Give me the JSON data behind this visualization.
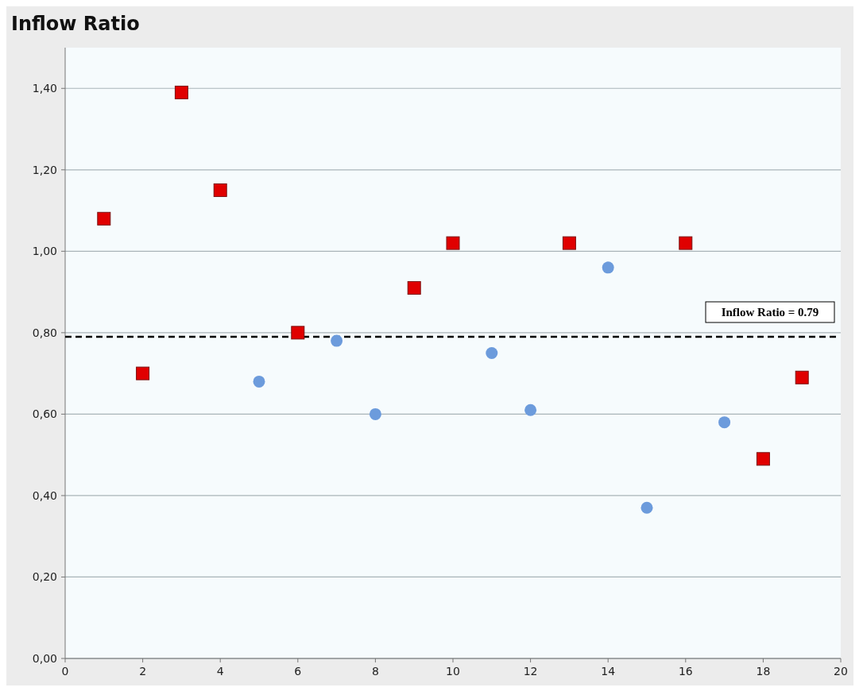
{
  "chart_data": {
    "type": "scatter",
    "title": "Inflow Ratio",
    "xlim": [
      0,
      20
    ],
    "xticks": [
      0,
      2,
      4,
      6,
      8,
      10,
      12,
      14,
      16,
      18,
      20
    ],
    "ylim": [
      0,
      1.5
    ],
    "yticks": [
      {
        "value": 0,
        "label": "0,00"
      },
      {
        "value": 0.2,
        "label": "0,20"
      },
      {
        "value": 0.4,
        "label": "0,40"
      },
      {
        "value": 0.6,
        "label": "0,60"
      },
      {
        "value": 0.8,
        "label": "0,80"
      },
      {
        "value": 1.0,
        "label": "1,00"
      },
      {
        "value": 1.2,
        "label": "1,20"
      },
      {
        "value": 1.4,
        "label": "1,40"
      }
    ],
    "grid": "y",
    "series": [
      {
        "color": "#e00000",
        "marker": "square",
        "x": [
          1,
          2,
          3,
          4,
          6,
          9,
          10,
          13,
          16,
          18,
          19
        ],
        "values": [
          1.08,
          0.7,
          1.39,
          1.15,
          0.8,
          0.91,
          1.02,
          1.02,
          1.02,
          0.49,
          0.69
        ]
      },
      {
        "color": "#6c9bdc",
        "marker": "circle",
        "x": [
          5,
          7,
          8,
          11,
          12,
          14,
          15,
          17
        ],
        "values": [
          0.68,
          0.78,
          0.6,
          0.75,
          0.61,
          0.96,
          0.37,
          0.58
        ]
      }
    ],
    "ref_lines": [
      {
        "axis": "y",
        "value": 0.79,
        "label": "Inflow Ratio = 0.79",
        "line_style": "dashed",
        "color": "#000000"
      }
    ]
  }
}
